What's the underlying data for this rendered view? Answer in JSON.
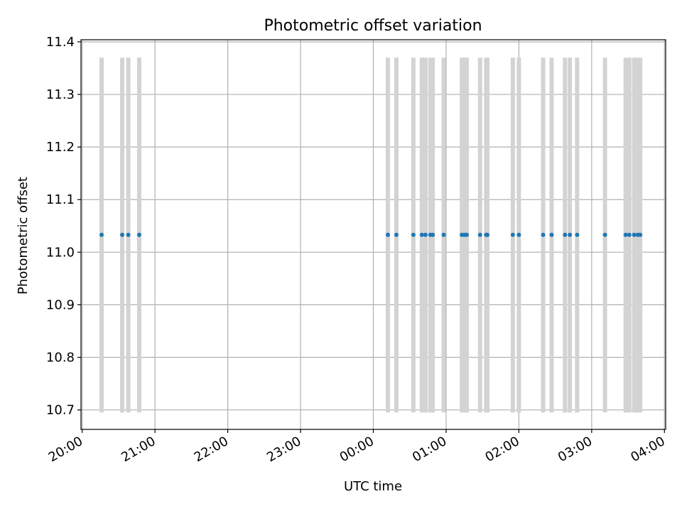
{
  "chart_data": {
    "type": "scatter",
    "title": "Photometric offset variation",
    "xlabel": "UTC time",
    "ylabel": "Photometric offset",
    "xlim": [
      "19:59",
      "04:01"
    ],
    "ylim": [
      10.663,
      11.404
    ],
    "grid": true,
    "x_ticks": [
      "20:00",
      "21:00",
      "22:00",
      "23:00",
      "00:00",
      "01:00",
      "02:00",
      "03:00",
      "04:00"
    ],
    "y_ticks": [
      10.7,
      10.8,
      10.9,
      11.0,
      11.1,
      11.2,
      11.3,
      11.4
    ],
    "y_tick_labels": [
      "10.7",
      "10.8",
      "10.9",
      "11.0",
      "11.1",
      "11.2",
      "11.3",
      "11.4"
    ],
    "markers": {
      "color": "#1f77b4",
      "y": 11.033,
      "x": [
        "20:16",
        "20:33",
        "20:38",
        "20:47",
        "00:12",
        "00:19",
        "00:33",
        "00:40",
        "00:43",
        "00:47",
        "00:49",
        "00:58",
        "01:13",
        "01:15",
        "01:17",
        "01:28",
        "01:33",
        "01:34",
        "01:55",
        "02:00",
        "02:20",
        "02:27",
        "02:38",
        "02:42",
        "02:48",
        "03:11",
        "03:28",
        "03:31",
        "03:35",
        "03:38",
        "03:40"
      ]
    },
    "observation_bands": {
      "color": "#d3d3d3",
      "y_range": [
        10.695,
        11.37
      ],
      "x": [
        "20:16",
        "20:33",
        "20:38",
        "20:47",
        "00:12",
        "00:19",
        "00:33",
        "00:40",
        "00:43",
        "00:47",
        "00:49",
        "00:58",
        "01:13",
        "01:15",
        "01:17",
        "01:28",
        "01:33",
        "01:34",
        "01:55",
        "02:00",
        "02:20",
        "02:27",
        "02:38",
        "02:42",
        "02:48",
        "03:11",
        "03:28",
        "03:31",
        "03:35",
        "03:38",
        "03:40"
      ]
    }
  }
}
